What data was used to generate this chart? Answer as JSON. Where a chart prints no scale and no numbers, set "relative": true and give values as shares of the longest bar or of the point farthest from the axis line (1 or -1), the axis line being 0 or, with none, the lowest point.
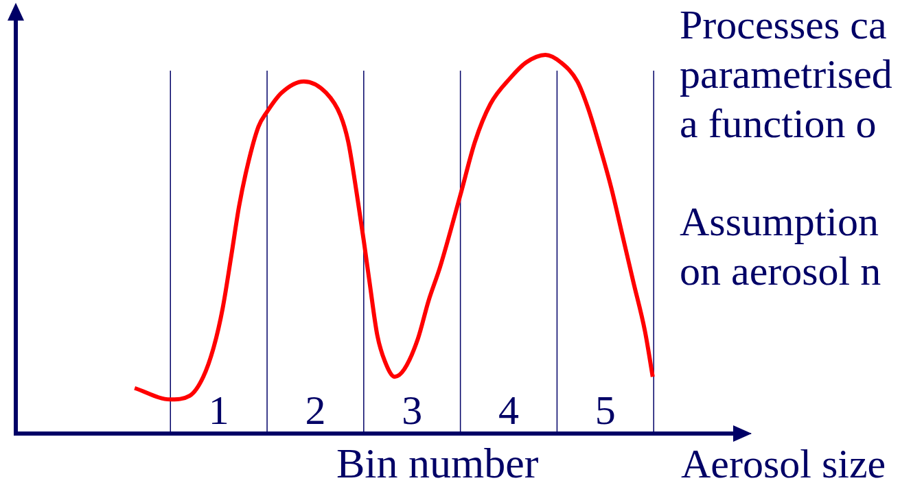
{
  "chart_data": {
    "type": "line",
    "relative": true,
    "xlabel": "Bin number",
    "annotations": [
      "Processes ca\nparametrised\na function o",
      "Assumption\non aerosol n",
      "Aerosol size"
    ],
    "x": [
      0.13,
      0.5,
      0.7,
      0.84,
      0.95,
      1.04,
      1.13,
      1.21,
      1.3,
      1.41,
      1.5,
      1.65,
      1.88,
      2.11,
      2.26,
      2.34,
      2.43,
      2.5,
      2.56,
      2.64,
      2.72,
      2.82,
      2.92,
      3.06,
      3.17,
      3.29,
      3.5,
      3.65,
      3.81,
      4.02,
      4.18,
      4.38,
      4.54,
      4.71,
      4.82,
      4.94,
      5.06,
      5.18,
      5.29,
      5.41,
      5.49
    ],
    "series": [
      {
        "color": "#ff0000",
        "values": [
          0.12,
          0.09,
          0.1,
          0.15,
          0.23,
          0.33,
          0.47,
          0.6,
          0.71,
          0.81,
          0.85,
          0.9,
          0.93,
          0.9,
          0.84,
          0.77,
          0.63,
          0.51,
          0.4,
          0.26,
          0.19,
          0.15,
          0.17,
          0.25,
          0.35,
          0.44,
          0.63,
          0.77,
          0.87,
          0.94,
          0.98,
          1,
          0.98,
          0.93,
          0.86,
          0.76,
          0.65,
          0.52,
          0.4,
          0.27,
          0.15
        ]
      }
    ],
    "xlim": [
      -1.1,
      6.5
    ],
    "xticks": [
      1,
      2,
      3,
      4,
      5
    ],
    "ref_lines": [
      {
        "axis": "x",
        "value": 0.5,
        "color": "#000066"
      },
      {
        "axis": "x",
        "value": 1.5,
        "color": "#000066"
      },
      {
        "axis": "x",
        "value": 2.5,
        "color": "#000066"
      },
      {
        "axis": "x",
        "value": 3.5,
        "color": "#000066"
      },
      {
        "axis": "x",
        "value": 4.5,
        "color": "#000066"
      },
      {
        "axis": "x",
        "value": 5.5,
        "color": "#000066"
      }
    ],
    "marker": "none",
    "line_style": "solid"
  }
}
